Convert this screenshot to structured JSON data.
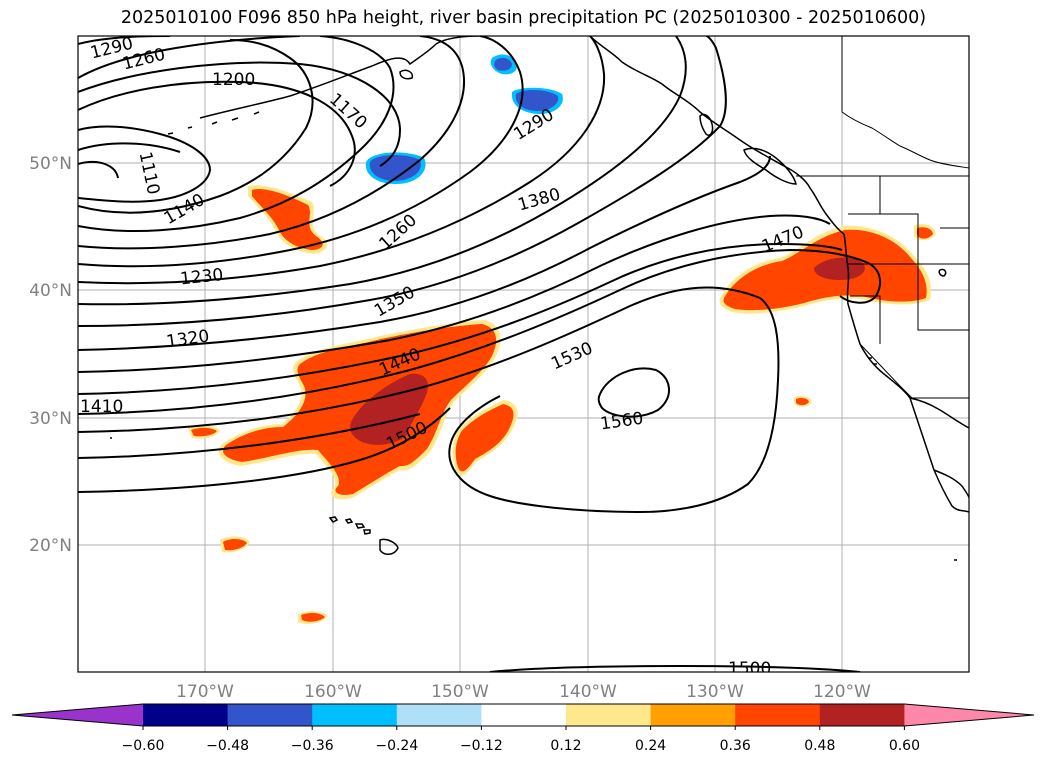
{
  "title": "2025010100 F096 850 hPa height, river basin precipitation PC (2025010300 - 2025010600)",
  "map": {
    "lon_labels": [
      "170°W",
      "160°W",
      "150°W",
      "140°W",
      "130°W",
      "120°W"
    ],
    "lat_labels": [
      "50°N",
      "40°N",
      "30°N",
      "20°N"
    ],
    "contour_labels": [
      "1290",
      "1260",
      "1200",
      "1170",
      "1290",
      "1110",
      "1140",
      "1260",
      "1380",
      "1230",
      "1350",
      "1320",
      "1440",
      "1530",
      "1410",
      "1500",
      "1560",
      "1470",
      "1500"
    ],
    "grid": true
  },
  "colorbar": {
    "ticks": [
      "−0.60",
      "−0.48",
      "−0.36",
      "−0.24",
      "−0.12",
      "0.12",
      "0.24",
      "0.36",
      "0.48",
      "0.60"
    ],
    "colors": [
      "#9933cc",
      "#00008b",
      "#3355cc",
      "#00bfff",
      "#afe0f8",
      "#ffffff",
      "#ffe88c",
      "#ffa000",
      "#ff4500",
      "#b22222",
      "#ff88aa"
    ]
  }
}
